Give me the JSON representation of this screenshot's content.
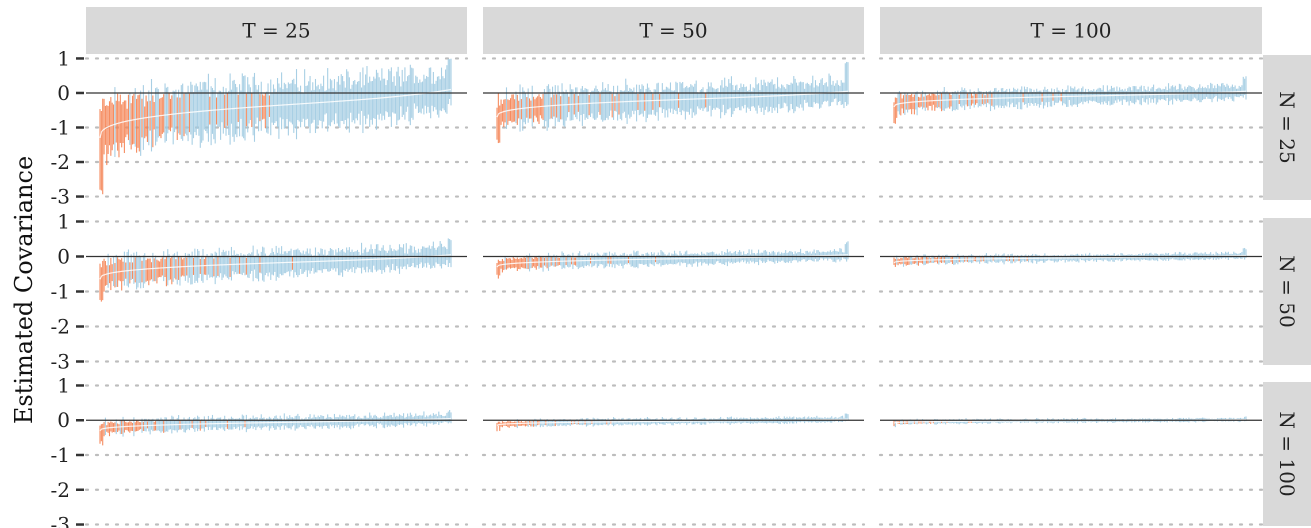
{
  "chart_data": {
    "type": "faceted-interval",
    "ylabel": "Estimated Covariance",
    "col_facets": [
      "T = 25",
      "T = 50",
      "T = 100"
    ],
    "row_facets": [
      "N = 25",
      "N = 50",
      "N = 100"
    ],
    "y_ticks": [
      1,
      0,
      -1,
      -2,
      -3
    ],
    "y_tick_labels": [
      "1",
      "0",
      "-1",
      "-2",
      "-3"
    ],
    "ylim": [
      -3.1,
      1.1
    ],
    "reference_line": 0,
    "grid": "dotted horizontal",
    "colors": {
      "interval_covers_zero": "#9ecae1",
      "interval_below_zero": "#f4804f",
      "interval_above_zero": "#2b5ba8",
      "point_estimate_line": "#ffffff",
      "strip_background": "#d9d9d9",
      "zero_line": "#333333",
      "grid": "#bdbdbd"
    },
    "panels": [
      {
        "row": 0,
        "col": 0,
        "est_min": -1.3,
        "est_max": 0.1,
        "lo_min": -3.0,
        "hi_max": 1.0,
        "spread": 0.9
      },
      {
        "row": 0,
        "col": 1,
        "est_min": -0.7,
        "est_max": 0.05,
        "lo_min": -1.5,
        "hi_max": 0.9,
        "spread": 0.55
      },
      {
        "row": 0,
        "col": 2,
        "est_min": -0.4,
        "est_max": 0.05,
        "lo_min": -0.9,
        "hi_max": 0.5,
        "spread": 0.3
      },
      {
        "row": 1,
        "col": 0,
        "est_min": -0.65,
        "est_max": 0.05,
        "lo_min": -1.4,
        "hi_max": 0.55,
        "spread": 0.45
      },
      {
        "row": 1,
        "col": 1,
        "est_min": -0.3,
        "est_max": 0.05,
        "lo_min": -0.7,
        "hi_max": 0.45,
        "spread": 0.22
      },
      {
        "row": 1,
        "col": 2,
        "est_min": -0.18,
        "est_max": 0.03,
        "lo_min": -0.4,
        "hi_max": 0.3,
        "spread": 0.13
      },
      {
        "row": 2,
        "col": 0,
        "est_min": -0.3,
        "est_max": 0.05,
        "lo_min": -0.75,
        "hi_max": 0.3,
        "spread": 0.22
      },
      {
        "row": 2,
        "col": 1,
        "est_min": -0.15,
        "est_max": 0.03,
        "lo_min": -0.35,
        "hi_max": 0.2,
        "spread": 0.11
      },
      {
        "row": 2,
        "col": 2,
        "est_min": -0.08,
        "est_max": 0.02,
        "lo_min": -0.2,
        "hi_max": 0.15,
        "spread": 0.07
      }
    ]
  }
}
